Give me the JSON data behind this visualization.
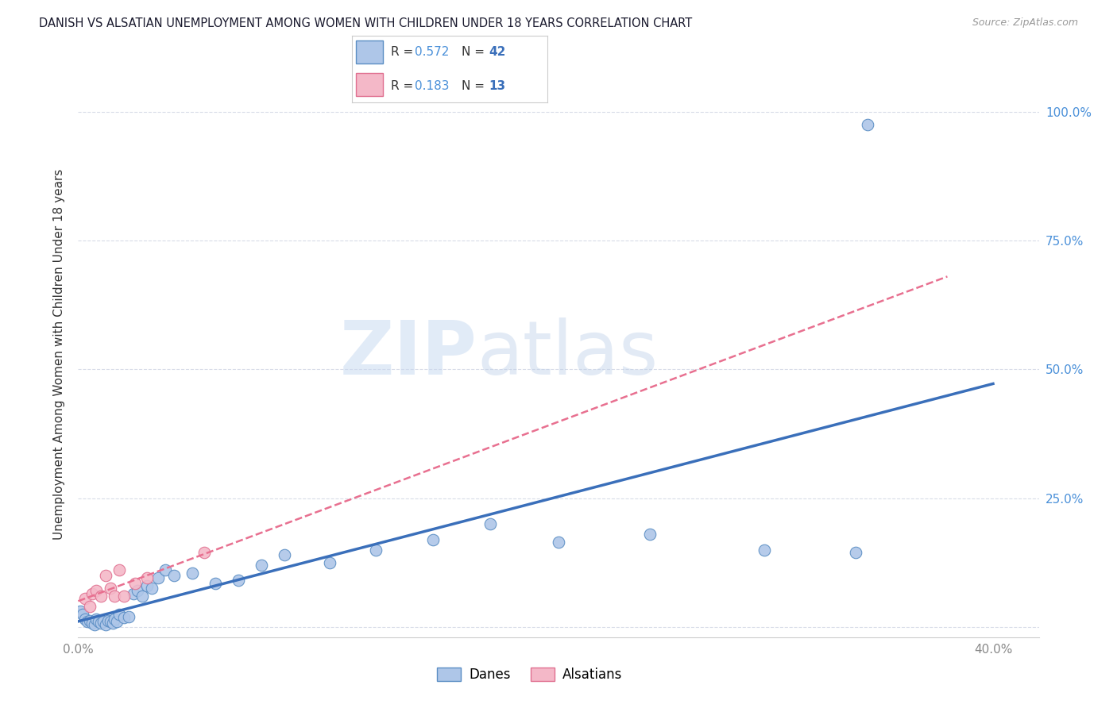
{
  "title": "DANISH VS ALSATIAN UNEMPLOYMENT AMONG WOMEN WITH CHILDREN UNDER 18 YEARS CORRELATION CHART",
  "source": "Source: ZipAtlas.com",
  "ylabel": "Unemployment Among Women with Children Under 18 years",
  "xlim": [
    0.0,
    0.42
  ],
  "ylim": [
    -0.02,
    1.08
  ],
  "xticks": [
    0.0,
    0.1,
    0.2,
    0.3,
    0.4
  ],
  "xticklabels": [
    "0.0%",
    "",
    "",
    "",
    "40.0%"
  ],
  "ytick_positions": [
    0.0,
    0.25,
    0.5,
    0.75,
    1.0
  ],
  "yticklabels_right": [
    "",
    "25.0%",
    "50.0%",
    "75.0%",
    "100.0%"
  ],
  "danes_R": "0.572",
  "danes_N": "42",
  "alsatians_R": "0.183",
  "alsatians_N": "13",
  "danes_color": "#aec6e8",
  "alsatians_color": "#f4b8c8",
  "danes_edge_color": "#5b8ec4",
  "alsatians_edge_color": "#e07090",
  "danes_line_color": "#3a6fba",
  "alsatians_line_color": "#e87090",
  "legend_label_danes": "Danes",
  "legend_label_alsatians": "Alsatians",
  "watermark_zip": "ZIP",
  "watermark_atlas": "atlas",
  "danes_x": [
    0.001,
    0.002,
    0.003,
    0.004,
    0.005,
    0.006,
    0.007,
    0.008,
    0.009,
    0.01,
    0.011,
    0.012,
    0.013,
    0.014,
    0.015,
    0.016,
    0.017,
    0.018,
    0.02,
    0.022,
    0.024,
    0.026,
    0.028,
    0.03,
    0.032,
    0.035,
    0.038,
    0.042,
    0.05,
    0.06,
    0.07,
    0.08,
    0.09,
    0.11,
    0.13,
    0.155,
    0.18,
    0.21,
    0.25,
    0.3,
    0.34,
    0.345
  ],
  "danes_y": [
    0.03,
    0.025,
    0.015,
    0.01,
    0.012,
    0.008,
    0.005,
    0.015,
    0.01,
    0.008,
    0.01,
    0.005,
    0.012,
    0.01,
    0.008,
    0.015,
    0.01,
    0.025,
    0.018,
    0.02,
    0.065,
    0.07,
    0.06,
    0.08,
    0.075,
    0.095,
    0.11,
    0.1,
    0.105,
    0.085,
    0.09,
    0.12,
    0.14,
    0.125,
    0.15,
    0.17,
    0.2,
    0.165,
    0.18,
    0.15,
    0.145,
    0.975
  ],
  "alsatians_x": [
    0.003,
    0.005,
    0.006,
    0.008,
    0.01,
    0.012,
    0.014,
    0.016,
    0.018,
    0.02,
    0.025,
    0.03,
    0.055
  ],
  "alsatians_y": [
    0.055,
    0.04,
    0.065,
    0.07,
    0.06,
    0.1,
    0.075,
    0.06,
    0.11,
    0.06,
    0.085,
    0.095,
    0.145
  ],
  "background_color": "#ffffff",
  "grid_color": "#d8dce8",
  "title_color": "#1a1a2e",
  "axis_label_color": "#333333",
  "tick_color": "#888888",
  "tick_color_right": "#4a90d9",
  "r_value_color": "#4a90d9",
  "n_value_color": "#3a6fba"
}
